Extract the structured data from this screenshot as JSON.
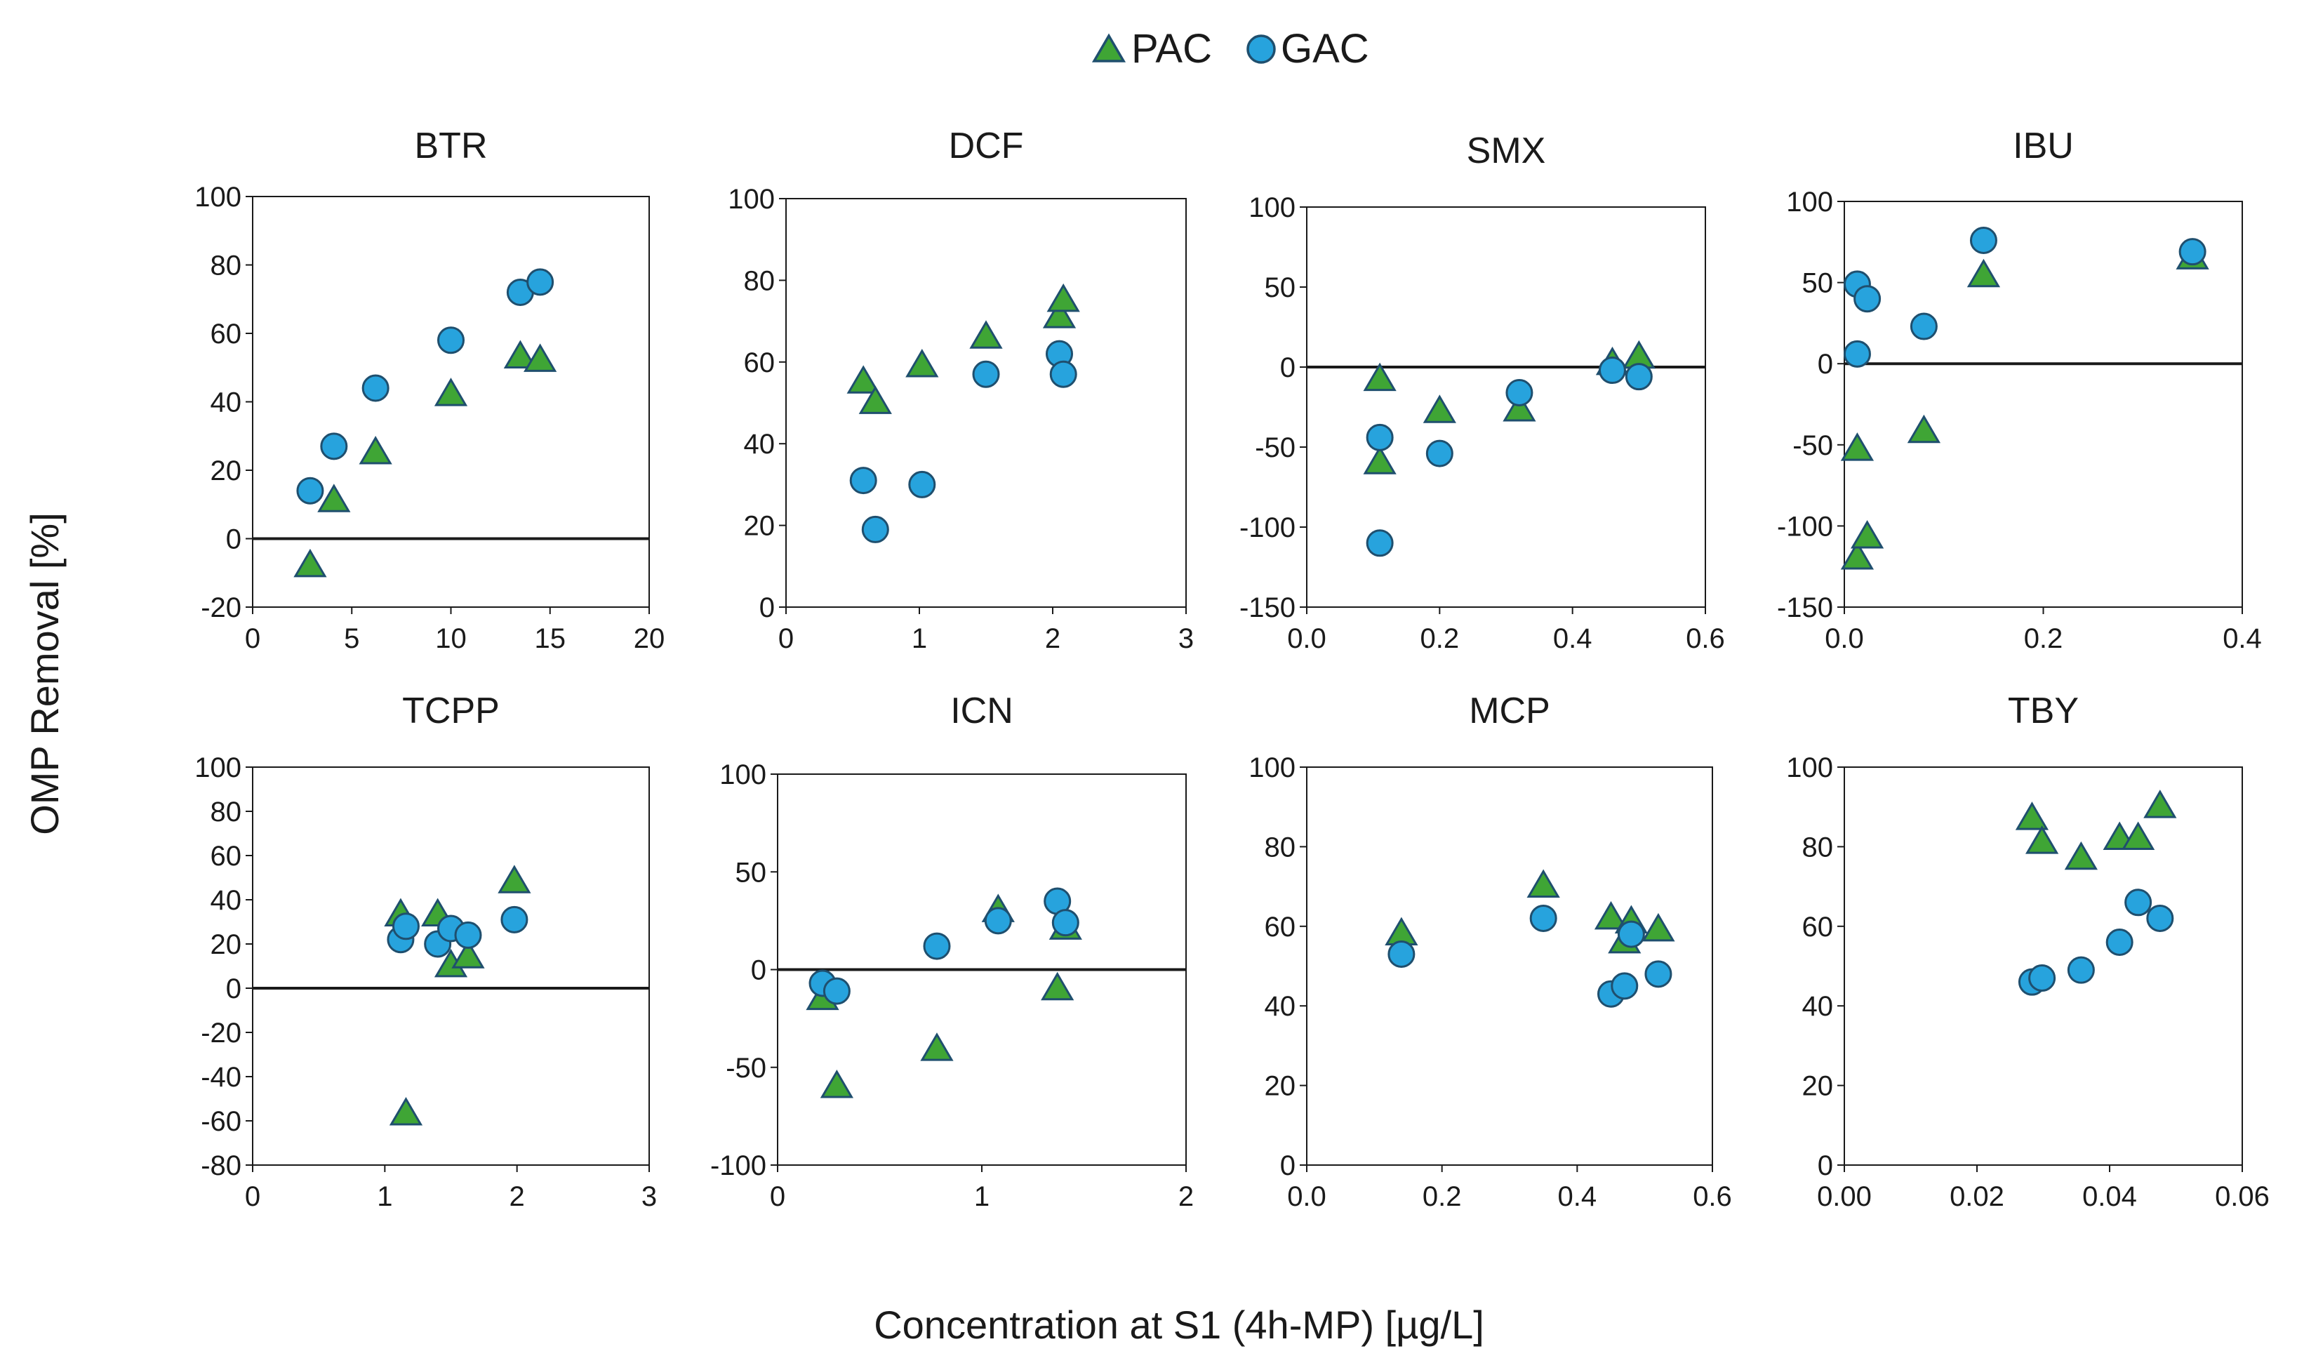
{
  "figure": {
    "ylabel": "OMP Removal [%]",
    "xlabel": "Concentration at S1 (4h-MP) [µg/L]"
  },
  "legend": {
    "items": [
      {
        "name": "PAC",
        "marker": "triangle",
        "color": "#3fa535"
      },
      {
        "name": "GAC",
        "marker": "circle",
        "color": "#27a3dd"
      }
    ]
  },
  "colors": {
    "pac_fill": "#3fa535",
    "gac_fill": "#27a3dd",
    "marker_stroke": "#1f4f6e",
    "axis": "#1a1a1a"
  },
  "chart_data": [
    {
      "type": "scatter",
      "title": "BTR",
      "xlim": [
        0,
        20
      ],
      "xticks": [
        0,
        5,
        10,
        15,
        20
      ],
      "xticklabels": [
        "0",
        "5",
        "10",
        "15",
        "20"
      ],
      "ylim": [
        -20,
        100
      ],
      "yticks": [
        -20,
        0,
        20,
        40,
        60,
        80,
        100
      ],
      "yticklabels": [
        "-20",
        "0",
        "20",
        "40",
        "60",
        "80",
        "100"
      ],
      "zero_line": true,
      "series": [
        {
          "name": "PAC",
          "points": [
            [
              2.9,
              -8
            ],
            [
              4.1,
              11
            ],
            [
              6.2,
              25
            ],
            [
              10,
              42
            ],
            [
              13.5,
              53
            ],
            [
              14.5,
              52
            ]
          ]
        },
        {
          "name": "GAC",
          "points": [
            [
              2.9,
              14
            ],
            [
              4.1,
              27
            ],
            [
              6.2,
              44
            ],
            [
              10,
              58
            ],
            [
              13.5,
              72
            ],
            [
              14.5,
              75
            ]
          ]
        }
      ]
    },
    {
      "type": "scatter",
      "title": "DCF",
      "xlim": [
        0,
        3
      ],
      "xticks": [
        0,
        1,
        2,
        3
      ],
      "xticklabels": [
        "0",
        "1",
        "2",
        "3"
      ],
      "ylim": [
        0,
        100
      ],
      "yticks": [
        0,
        20,
        40,
        60,
        80,
        100
      ],
      "yticklabels": [
        "0",
        "20",
        "40",
        "60",
        "80",
        "100"
      ],
      "zero_line": false,
      "series": [
        {
          "name": "PAC",
          "points": [
            [
              0.58,
              55
            ],
            [
              0.67,
              50
            ],
            [
              1.02,
              59
            ],
            [
              1.5,
              66
            ],
            [
              2.05,
              71
            ],
            [
              2.08,
              75
            ]
          ]
        },
        {
          "name": "GAC",
          "points": [
            [
              0.58,
              31
            ],
            [
              0.67,
              19
            ],
            [
              1.02,
              30
            ],
            [
              1.5,
              57
            ],
            [
              2.05,
              62
            ],
            [
              2.08,
              57
            ]
          ]
        }
      ]
    },
    {
      "type": "scatter",
      "title": "SMX",
      "xlim": [
        0,
        0.6
      ],
      "xticks": [
        0,
        0.2,
        0.4,
        0.6
      ],
      "xticklabels": [
        "0.0",
        "0.2",
        "0.4",
        "0.6"
      ],
      "ylim": [
        -150,
        100
      ],
      "yticks": [
        -150,
        -100,
        -50,
        0,
        50,
        100
      ],
      "yticklabels": [
        "-150",
        "-100",
        "-50",
        "0",
        "50",
        "100"
      ],
      "zero_line": true,
      "series": [
        {
          "name": "PAC",
          "points": [
            [
              0.11,
              -8
            ],
            [
              0.11,
              -60
            ],
            [
              0.2,
              -28
            ],
            [
              0.32,
              -27
            ],
            [
              0.46,
              2
            ],
            [
              0.5,
              6
            ]
          ]
        },
        {
          "name": "GAC",
          "points": [
            [
              0.11,
              -44
            ],
            [
              0.11,
              -110
            ],
            [
              0.2,
              -54
            ],
            [
              0.32,
              -16
            ],
            [
              0.46,
              -2
            ],
            [
              0.5,
              -6
            ]
          ]
        }
      ]
    },
    {
      "type": "scatter",
      "title": "IBU",
      "xlim": [
        0,
        0.4
      ],
      "xticks": [
        0,
        0.2,
        0.4
      ],
      "xticklabels": [
        "0.0",
        "0.2",
        "0.4"
      ],
      "ylim": [
        -150,
        100
      ],
      "yticks": [
        -150,
        -100,
        -50,
        0,
        50,
        100
      ],
      "yticklabels": [
        "-150",
        "-100",
        "-50",
        "0",
        "50",
        "100"
      ],
      "zero_line": true,
      "series": [
        {
          "name": "PAC",
          "points": [
            [
              0.013,
              -53
            ],
            [
              0.013,
              -120
            ],
            [
              0.023,
              -107
            ],
            [
              0.08,
              -42
            ],
            [
              0.14,
              54
            ],
            [
              0.35,
              65
            ]
          ]
        },
        {
          "name": "GAC",
          "points": [
            [
              0.013,
              49
            ],
            [
              0.013,
              6
            ],
            [
              0.023,
              40
            ],
            [
              0.08,
              23
            ],
            [
              0.14,
              76
            ],
            [
              0.35,
              69
            ]
          ]
        }
      ]
    },
    {
      "type": "scatter",
      "title": "TCPP",
      "xlim": [
        0,
        3
      ],
      "xticks": [
        0,
        1,
        2,
        3
      ],
      "xticklabels": [
        "0",
        "1",
        "2",
        "3"
      ],
      "ylim": [
        -80,
        100
      ],
      "yticks": [
        -80,
        -60,
        -40,
        -20,
        0,
        20,
        40,
        60,
        80,
        100
      ],
      "yticklabels": [
        "-80",
        "-60",
        "-40",
        "-20",
        "0",
        "20",
        "40",
        "60",
        "80",
        "100"
      ],
      "zero_line": true,
      "series": [
        {
          "name": "PAC",
          "points": [
            [
              1.12,
              33
            ],
            [
              1.16,
              -57
            ],
            [
              1.4,
              33
            ],
            [
              1.5,
              10
            ],
            [
              1.63,
              14
            ],
            [
              1.98,
              48
            ]
          ]
        },
        {
          "name": "GAC",
          "points": [
            [
              1.12,
              22
            ],
            [
              1.16,
              28
            ],
            [
              1.4,
              20
            ],
            [
              1.5,
              27
            ],
            [
              1.63,
              24
            ],
            [
              1.98,
              31
            ]
          ]
        }
      ]
    },
    {
      "type": "scatter",
      "title": "ICN",
      "xlim": [
        0,
        2
      ],
      "xticks": [
        0,
        1,
        2
      ],
      "xticklabels": [
        "0",
        "1",
        "2"
      ],
      "ylim": [
        -100,
        100
      ],
      "yticks": [
        -100,
        -50,
        0,
        50,
        100
      ],
      "yticklabels": [
        "-100",
        "-50",
        "0",
        "50",
        "100"
      ],
      "zero_line": true,
      "series": [
        {
          "name": "PAC",
          "points": [
            [
              0.22,
              -15
            ],
            [
              0.29,
              -60
            ],
            [
              0.78,
              -41
            ],
            [
              1.08,
              30
            ],
            [
              1.37,
              -10
            ],
            [
              1.41,
              21
            ]
          ]
        },
        {
          "name": "GAC",
          "points": [
            [
              0.22,
              -7
            ],
            [
              0.29,
              -11
            ],
            [
              0.78,
              12
            ],
            [
              1.08,
              25
            ],
            [
              1.37,
              35
            ],
            [
              1.41,
              24
            ]
          ]
        }
      ]
    },
    {
      "type": "scatter",
      "title": "MCP",
      "xlim": [
        0,
        0.6
      ],
      "xticks": [
        0,
        0.2,
        0.4,
        0.6
      ],
      "xticklabels": [
        "0.0",
        "0.2",
        "0.4",
        "0.6"
      ],
      "ylim": [
        0,
        100
      ],
      "yticks": [
        0,
        20,
        40,
        60,
        80,
        100
      ],
      "yticklabels": [
        "0",
        "20",
        "40",
        "60",
        "80",
        "100"
      ],
      "zero_line": false,
      "series": [
        {
          "name": "PAC",
          "points": [
            [
              0.14,
              58
            ],
            [
              0.35,
              70
            ],
            [
              0.45,
              62
            ],
            [
              0.47,
              56
            ],
            [
              0.48,
              61
            ],
            [
              0.52,
              59
            ]
          ]
        },
        {
          "name": "GAC",
          "points": [
            [
              0.14,
              53
            ],
            [
              0.35,
              62
            ],
            [
              0.45,
              43
            ],
            [
              0.47,
              45
            ],
            [
              0.48,
              58
            ],
            [
              0.52,
              48
            ]
          ]
        }
      ]
    },
    {
      "type": "scatter",
      "title": "TBY",
      "xlim": [
        0,
        0.06
      ],
      "xticks": [
        0,
        0.02,
        0.04,
        0.06
      ],
      "xticklabels": [
        "0.00",
        "0.02",
        "0.04",
        "0.06"
      ],
      "ylim": [
        0,
        100
      ],
      "yticks": [
        0,
        20,
        40,
        60,
        80,
        100
      ],
      "yticklabels": [
        "0",
        "20",
        "40",
        "60",
        "80",
        "100"
      ],
      "zero_line": false,
      "series": [
        {
          "name": "PAC",
          "points": [
            [
              0.0283,
              87
            ],
            [
              0.0298,
              81
            ],
            [
              0.0357,
              77
            ],
            [
              0.0415,
              82
            ],
            [
              0.0443,
              82
            ],
            [
              0.0476,
              90
            ]
          ]
        },
        {
          "name": "GAC",
          "points": [
            [
              0.0283,
              46
            ],
            [
              0.0298,
              47
            ],
            [
              0.0357,
              49
            ],
            [
              0.0415,
              56
            ],
            [
              0.0443,
              66
            ],
            [
              0.0476,
              62
            ]
          ]
        }
      ]
    }
  ]
}
